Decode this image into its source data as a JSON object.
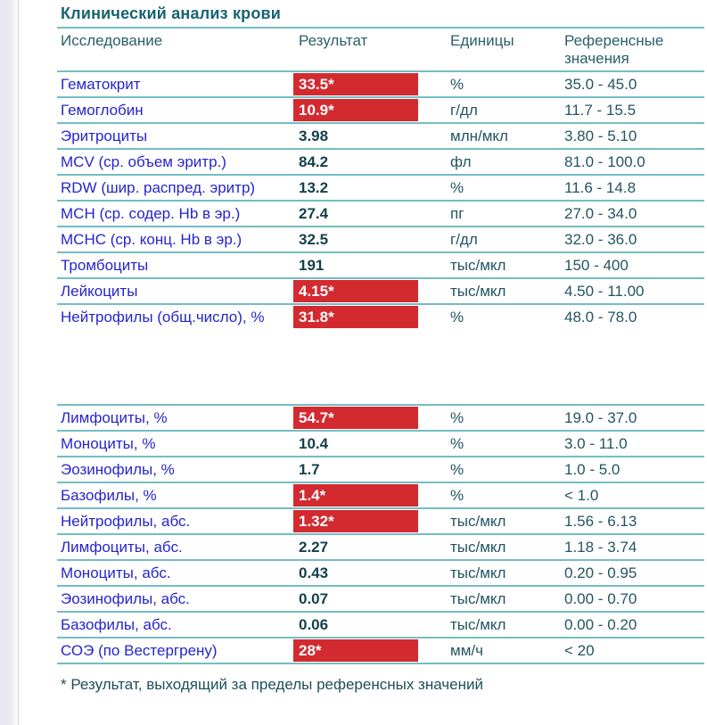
{
  "page": {
    "title": "Клинический анализ крови",
    "footnote": "* Результат, выходящий за пределы референсных значений"
  },
  "colors": {
    "accent_line_teal": "#74bdc4",
    "title_teal": "#186470",
    "test_name_blue": "#2525cd",
    "out_of_range_bg_red": "#d32a30",
    "out_of_range_text": "#ffffff",
    "result_text": "#14414d",
    "body_text_teal": "#235561"
  },
  "table": {
    "headers": [
      "Исследование",
      "Результат",
      "Единицы",
      "Референсные значения"
    ],
    "sections": [
      {
        "rows": [
          {
            "name": "Гематокрит",
            "result": "33.5*",
            "out_of_range": true,
            "units": "%",
            "reference": "35.0 - 45.0"
          },
          {
            "name": "Гемоглобин",
            "result": "10.9*",
            "out_of_range": true,
            "units": "г/дл",
            "reference": "11.7 - 15.5"
          },
          {
            "name": "Эритроциты",
            "result": "3.98",
            "out_of_range": false,
            "units": "млн/мкл",
            "reference": "3.80 - 5.10"
          },
          {
            "name": "MCV (ср. объем эритр.)",
            "result": "84.2",
            "out_of_range": false,
            "units": "фл",
            "reference": "81.0 - 100.0"
          },
          {
            "name": "RDW (шир. распред. эритр)",
            "result": "13.2",
            "out_of_range": false,
            "units": "%",
            "reference": "11.6 - 14.8"
          },
          {
            "name": "MCH (ср. содер. Hb в эр.)",
            "result": "27.4",
            "out_of_range": false,
            "units": "пг",
            "reference": "27.0 - 34.0"
          },
          {
            "name": "MCHC (ср. конц. Hb в эр.)",
            "result": "32.5",
            "out_of_range": false,
            "units": "г/дл",
            "reference": "32.0 - 36.0"
          },
          {
            "name": "Тромбоциты",
            "result": "191",
            "out_of_range": false,
            "units": "тыс/мкл",
            "reference": "150 - 400"
          },
          {
            "name": "Лейкоциты",
            "result": "4.15*",
            "out_of_range": true,
            "units": "тыс/мкл",
            "reference": "4.50 - 11.00"
          },
          {
            "name": "Нейтрофилы (общ.число), %",
            "result": "31.8*",
            "out_of_range": true,
            "units": "%",
            "reference": "48.0 - 78.0"
          }
        ]
      },
      {
        "rows": [
          {
            "name": "Лимфоциты, %",
            "result": "54.7*",
            "out_of_range": true,
            "units": "%",
            "reference": "19.0 - 37.0"
          },
          {
            "name": "Моноциты, %",
            "result": "10.4",
            "out_of_range": false,
            "units": "%",
            "reference": "3.0 - 11.0"
          },
          {
            "name": "Эозинофилы, %",
            "result": "1.7",
            "out_of_range": false,
            "units": "%",
            "reference": "1.0 - 5.0"
          },
          {
            "name": "Базофилы, %",
            "result": "1.4*",
            "out_of_range": true,
            "units": "%",
            "reference": "< 1.0"
          },
          {
            "name": "Нейтрофилы, абс.",
            "result": "1.32*",
            "out_of_range": true,
            "units": "тыс/мкл",
            "reference": "1.56 - 6.13"
          },
          {
            "name": "Лимфоциты, абс.",
            "result": "2.27",
            "out_of_range": false,
            "units": "тыс/мкл",
            "reference": "1.18 - 3.74"
          },
          {
            "name": "Моноциты, абс.",
            "result": "0.43",
            "out_of_range": false,
            "units": "тыс/мкл",
            "reference": "0.20 - 0.95"
          },
          {
            "name": "Эозинофилы, абс.",
            "result": "0.07",
            "out_of_range": false,
            "units": "тыс/мкл",
            "reference": "0.00 - 0.70"
          },
          {
            "name": "Базофилы, абс.",
            "result": "0.06",
            "out_of_range": false,
            "units": "тыс/мкл",
            "reference": "0.00 - 0.20"
          },
          {
            "name": "СОЭ (по Вестергрену)",
            "result": "28*",
            "out_of_range": true,
            "units": "мм/ч",
            "reference": "< 20"
          }
        ]
      }
    ]
  }
}
